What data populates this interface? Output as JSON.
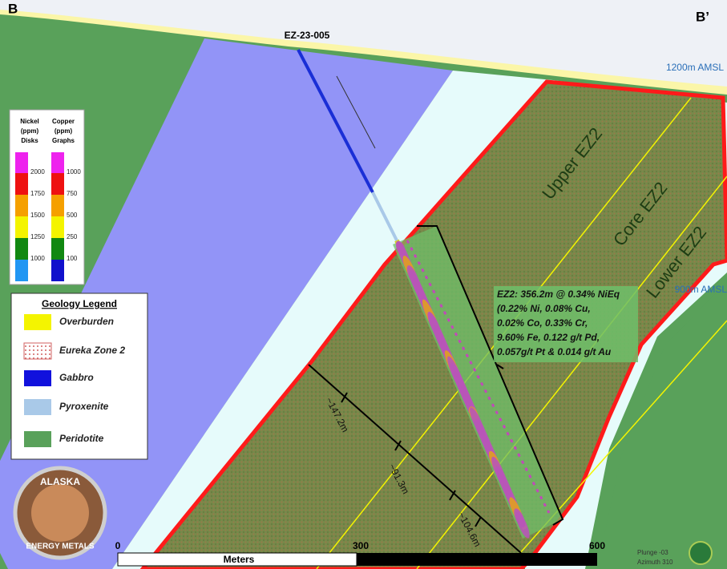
{
  "header": {
    "left_label": "B",
    "right_label": "B’"
  },
  "drillhole": "EZ-23-005",
  "elevations": [
    "1200m AMSL",
    "900m AMSL"
  ],
  "zones": [
    "Upper EZ2",
    "Core EZ2",
    "Lower EZ2"
  ],
  "assay_legend": {
    "nickel": {
      "title": [
        "Nickel",
        "(ppm)",
        "Disks"
      ],
      "ticks": [
        "2000",
        "1750",
        "1500",
        "1250",
        "1000"
      ]
    },
    "copper": {
      "title": [
        "Copper",
        "(ppm)",
        "Graphs"
      ],
      "ticks": [
        "1000",
        "750",
        "500",
        "250",
        "100"
      ]
    }
  },
  "geology_legend": {
    "title": "Geology Legend",
    "items": [
      "Overburden",
      "Eureka Zone 2",
      "Gabbro",
      "Pyroxenite",
      "Peridotite"
    ]
  },
  "intercept": {
    "lines": [
      "EZ2: 356.2m @ 0.34% NiEq",
      "(0.22% Ni, 0.08% Cu,",
      "0.02% Co, 0.33% Cr,",
      "9.60% Fe, 0.122 g/t Pd,",
      "0.057g/t Pt & 0.014 g/t Au"
    ]
  },
  "widths": [
    "~147.2m",
    "~91.3m",
    "~104.6m"
  ],
  "scale": {
    "ticks": [
      "0",
      "300",
      "600"
    ],
    "label": "Meters"
  },
  "orientation": [
    "Plunge -03",
    "Azimuth 310"
  ],
  "logo": [
    "ALASKA",
    "ENERGY METALS"
  ]
}
